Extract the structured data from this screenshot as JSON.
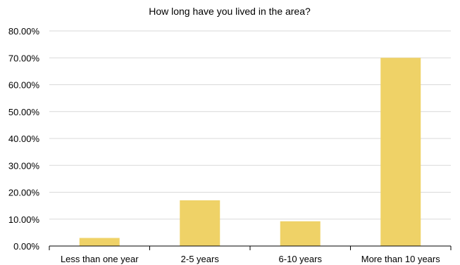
{
  "chart_data": {
    "type": "bar",
    "title": "How long have you lived in the area?",
    "categories": [
      "Less than one year",
      "2-5 years",
      "6-10 years",
      "More than 10 years"
    ],
    "values": [
      3.0,
      17.0,
      9.2,
      70.0
    ],
    "value_format": "percent",
    "ylim": [
      0,
      80
    ],
    "yticks": [
      "0.00%",
      "10.00%",
      "20.00%",
      "30.00%",
      "40.00%",
      "50.00%",
      "60.00%",
      "70.00%",
      "80.00%"
    ],
    "xlabel": "",
    "ylabel": "",
    "grid": true,
    "legend": "none",
    "bar_color": "#efd267",
    "gridline_color": "#d9d9d9"
  }
}
